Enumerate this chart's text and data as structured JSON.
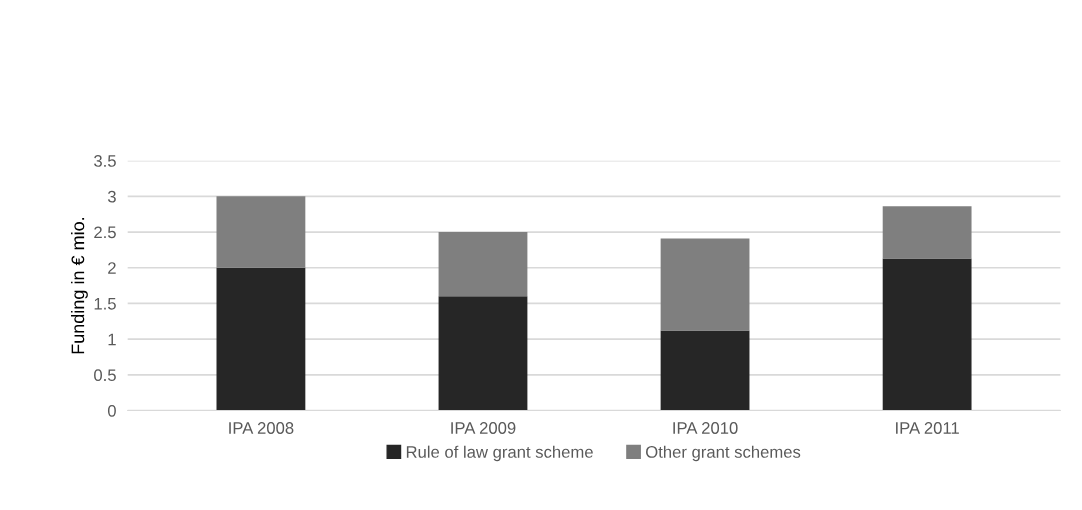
{
  "chart_data": {
    "type": "bar",
    "stacked": true,
    "ylabel": "Funding in € mio.",
    "categories": [
      "IPA 2008",
      "IPA 2009",
      "IPA 2010",
      "IPA 2011"
    ],
    "series": [
      {
        "name": "Rule of law grant scheme",
        "color": "#262626",
        "values": [
          2.0,
          1.6,
          1.12,
          2.13
        ]
      },
      {
        "name": "Other grant schemes",
        "color": "#7f7f7f",
        "values": [
          1.0,
          0.9,
          1.29,
          0.73
        ]
      }
    ],
    "ylim": [
      0,
      3.5
    ],
    "yticks": [
      0,
      0.5,
      1,
      1.5,
      2,
      2.5,
      3,
      3.5
    ],
    "grid": "y",
    "legend": "bottom"
  }
}
